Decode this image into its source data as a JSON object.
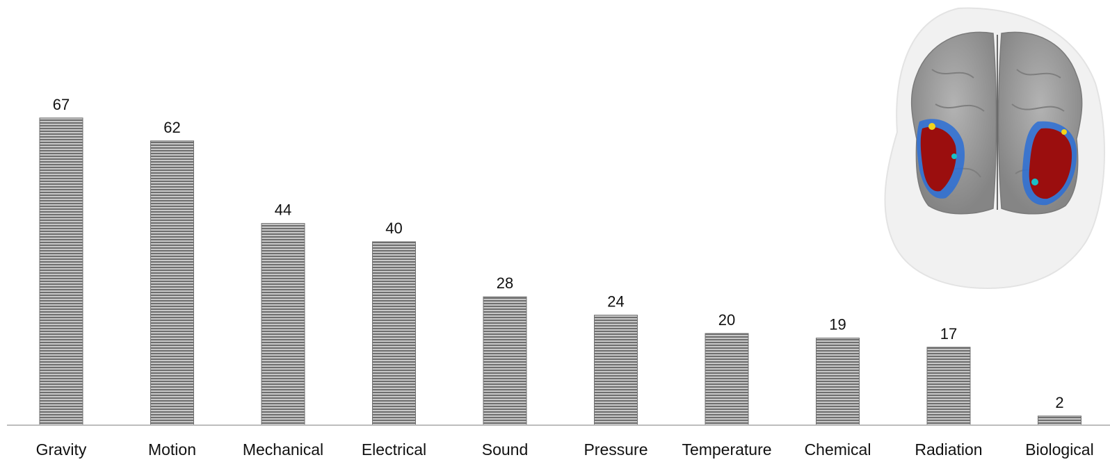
{
  "chart_data": {
    "type": "bar",
    "categories": [
      "Gravity",
      "Motion",
      "Mechanical",
      "Electrical",
      "Sound",
      "Pressure",
      "Temperature",
      "Chemical",
      "Radiation",
      "Biological"
    ],
    "values": [
      67,
      62,
      44,
      40,
      28,
      24,
      20,
      19,
      17,
      2
    ],
    "title": "",
    "xlabel": "",
    "ylabel": "",
    "ylim": [
      0,
      67
    ],
    "grid": false,
    "data_labels": true,
    "bar_fill": "horizontal-stripes",
    "colors": {
      "bar_dark": "#6e6e6e",
      "bar_light": "#c8c8c8",
      "axis": "#bdbdbd"
    }
  },
  "inset_image": {
    "icon": "brain-activation-icon",
    "colors": {
      "head": "#f1f1f1",
      "brain": "#9a9a9a",
      "activation": "#9b0e0e"
    }
  }
}
